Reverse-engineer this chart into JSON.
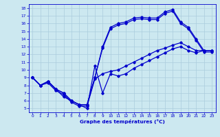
{
  "title": "Graphe des températures (°C)",
  "bg_color": "#cce8f0",
  "grid_color": "#aaccdd",
  "line_color": "#0000cc",
  "xlim": [
    -0.5,
    23.5
  ],
  "ylim": [
    4.5,
    18.5
  ],
  "xticks": [
    0,
    1,
    2,
    3,
    4,
    5,
    6,
    7,
    8,
    9,
    10,
    11,
    12,
    13,
    14,
    15,
    16,
    17,
    18,
    19,
    20,
    21,
    22,
    23
  ],
  "yticks": [
    5,
    6,
    7,
    8,
    9,
    10,
    11,
    12,
    13,
    14,
    15,
    16,
    17,
    18
  ],
  "curve1_x": [
    0,
    1,
    2,
    3,
    4,
    5,
    6,
    7,
    8,
    9,
    10,
    11,
    12,
    13,
    14,
    15,
    16,
    17,
    18,
    19,
    20,
    21,
    22,
    23
  ],
  "curve1_y": [
    9.0,
    8.0,
    8.5,
    7.5,
    6.5,
    6.0,
    5.5,
    5.0,
    10.5,
    7.0,
    9.5,
    9.2,
    9.5,
    10.2,
    10.7,
    11.2,
    11.7,
    12.2,
    12.7,
    13.0,
    12.5,
    12.2,
    12.5,
    12.5
  ],
  "curve2_x": [
    0,
    1,
    2,
    3,
    4,
    5,
    6,
    7,
    8,
    9,
    10,
    11,
    12,
    13,
    14,
    15,
    16,
    17,
    18,
    19,
    20,
    21,
    22,
    23
  ],
  "curve2_y": [
    9.0,
    8.0,
    8.5,
    7.5,
    7.0,
    6.0,
    5.5,
    5.5,
    9.0,
    13.0,
    15.5,
    16.0,
    16.2,
    16.7,
    16.8,
    16.7,
    16.7,
    17.5,
    17.8,
    16.2,
    15.5,
    14.0,
    12.5,
    12.5
  ],
  "curve3_x": [
    0,
    1,
    2,
    3,
    4,
    5,
    6,
    7,
    8,
    9,
    10,
    11,
    12,
    13,
    14,
    15,
    16,
    17,
    18,
    19,
    20,
    21,
    22,
    23
  ],
  "curve3_y": [
    9.0,
    8.0,
    8.5,
    7.5,
    7.0,
    6.0,
    5.5,
    5.5,
    9.0,
    12.8,
    15.3,
    15.8,
    16.0,
    16.5,
    16.6,
    16.5,
    16.5,
    17.3,
    17.6,
    16.0,
    15.3,
    13.8,
    12.3,
    12.3
  ],
  "curve4_x": [
    0,
    1,
    2,
    3,
    4,
    5,
    6,
    7,
    8,
    9,
    10,
    11,
    12,
    13,
    14,
    15,
    16,
    17,
    18,
    19,
    20,
    21,
    22,
    23
  ],
  "curve4_y": [
    9.0,
    8.0,
    8.3,
    7.3,
    6.8,
    5.8,
    5.3,
    5.3,
    8.8,
    9.5,
    9.8,
    10.0,
    10.5,
    11.0,
    11.5,
    12.0,
    12.5,
    12.8,
    13.2,
    13.5,
    13.0,
    12.5,
    12.5,
    12.5
  ]
}
